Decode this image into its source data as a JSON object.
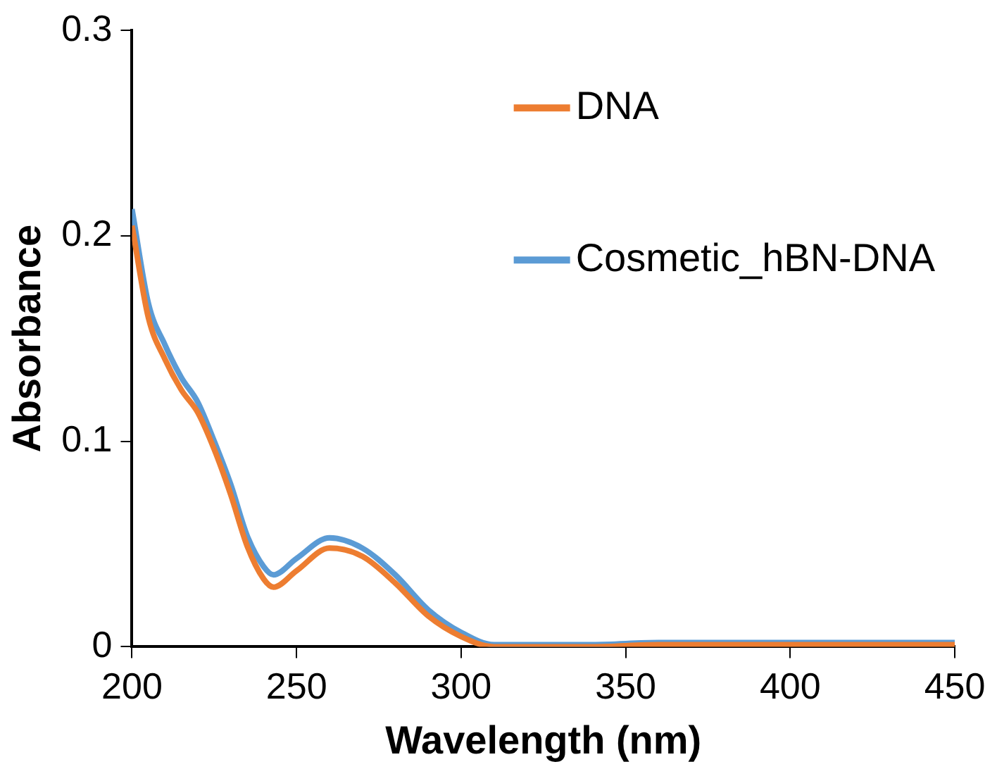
{
  "chart_data": {
    "type": "line",
    "xlabel": "Wavelength (nm)",
    "ylabel": "Absorbance",
    "x": [
      200,
      205,
      210,
      215,
      220,
      225,
      230,
      235,
      240,
      243,
      250,
      260,
      270,
      280,
      290,
      300,
      310,
      320,
      340,
      360,
      380,
      400,
      420,
      450
    ],
    "series": [
      {
        "name": "DNA",
        "color": "#ed7d31",
        "values": [
          0.205,
          0.16,
          0.14,
          0.125,
          0.114,
          0.096,
          0.074,
          0.049,
          0.033,
          0.029,
          0.037,
          0.048,
          0.044,
          0.031,
          0.015,
          0.005,
          0.0,
          0.0,
          0.0,
          0.001,
          0.001,
          0.001,
          0.001,
          0.001
        ]
      },
      {
        "name": "Cosmetic_hBN-DNA",
        "color": "#5b9bd5",
        "values": [
          0.213,
          0.167,
          0.147,
          0.131,
          0.119,
          0.1,
          0.079,
          0.054,
          0.039,
          0.035,
          0.043,
          0.053,
          0.048,
          0.035,
          0.018,
          0.007,
          0.001,
          0.001,
          0.001,
          0.002,
          0.002,
          0.002,
          0.002,
          0.002
        ]
      }
    ],
    "xlim": [
      200,
      450
    ],
    "xticks": [
      200,
      250,
      300,
      350,
      400,
      450
    ],
    "ylim": [
      0,
      0.3
    ],
    "yticks": [
      {
        "value": 0,
        "label": "0"
      },
      0.1,
      0.2,
      0.3
    ],
    "grid": false,
    "legend": "top right",
    "marker": "none",
    "line_style": "solid"
  }
}
